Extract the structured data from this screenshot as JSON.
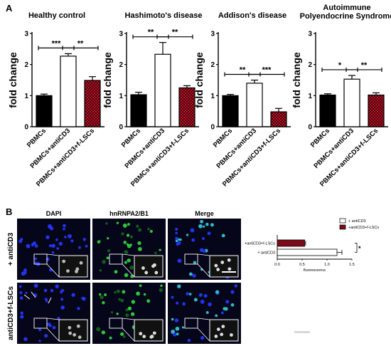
{
  "panel_a_letter": "A",
  "panel_b_letter": "B",
  "chart_data": [
    {
      "type": "bar",
      "title": "Healthy control",
      "ylabel": "fold change",
      "ylim": [
        0,
        3
      ],
      "yticks": [
        "0",
        "1",
        "2",
        "3"
      ],
      "categories": [
        "PBMCs",
        "PBMCs+antiCD3",
        "PBMCs+antiCD3+f-LSCs"
      ],
      "values": [
        1.0,
        2.27,
        1.49
      ],
      "errors": [
        0.05,
        0.08,
        0.12
      ],
      "fills": [
        "black",
        "white",
        "checker"
      ],
      "significance": [
        {
          "from": 0,
          "to": 1,
          "label": "***"
        },
        {
          "from": 1,
          "to": 2,
          "label": "**"
        }
      ]
    },
    {
      "type": "bar",
      "title": "Hashimoto's disease",
      "ylabel": "fold change",
      "ylim": [
        0,
        3
      ],
      "yticks": [
        "0",
        "1",
        "2",
        "3"
      ],
      "categories": [
        "PBMCs",
        "PBMCs+antiCD3",
        "PBMCs+antiCD3+f-LSCs"
      ],
      "values": [
        1.03,
        2.33,
        1.25
      ],
      "errors": [
        0.08,
        0.38,
        0.07
      ],
      "fills": [
        "black",
        "white",
        "checker"
      ],
      "significance": [
        {
          "from": 0,
          "to": 1,
          "label": "**"
        },
        {
          "from": 1,
          "to": 2,
          "label": "**"
        }
      ]
    },
    {
      "type": "bar",
      "title": "Addison's disease",
      "ylabel": "fold change",
      "ylim": [
        0,
        3
      ],
      "yticks": [
        "0",
        "1",
        "2",
        "3"
      ],
      "categories": [
        "PBMCs",
        "PBMCs+antiCD3",
        "PBMCs+antiCD3+f-LSCs"
      ],
      "values": [
        1.0,
        1.4,
        0.48
      ],
      "errors": [
        0.04,
        0.1,
        0.11
      ],
      "fills": [
        "black",
        "white",
        "checker"
      ],
      "significance": [
        {
          "from": 0,
          "to": 1,
          "label": "**"
        },
        {
          "from": 1,
          "to": 2,
          "label": "***"
        }
      ]
    },
    {
      "type": "bar",
      "title": "Autoimmune\nPolyendocrine Syndrome",
      "ylabel": "fold change",
      "ylim": [
        0,
        3
      ],
      "yticks": [
        "0",
        "1",
        "2",
        "3"
      ],
      "categories": [
        "PBMCs",
        "PBMCs+antiCD3",
        "PBMCs+antiCD3+f-LSCs"
      ],
      "values": [
        1.02,
        1.53,
        1.02
      ],
      "errors": [
        0.04,
        0.12,
        0.07
      ],
      "fills": [
        "black",
        "white",
        "checker"
      ],
      "significance": [
        {
          "from": 0,
          "to": 1,
          "label": "*"
        },
        {
          "from": 1,
          "to": 2,
          "label": "**"
        }
      ]
    },
    {
      "type": "bar",
      "orientation": "horizontal",
      "xlabel": "fluorescence",
      "xlim": [
        0,
        1.5
      ],
      "xticks": [
        "0.0",
        "0.5",
        "1.0",
        "1.5"
      ],
      "categories": [
        "+antiCD3+f-LSCs",
        "+ antiCD3"
      ],
      "values": [
        0.55,
        1.2
      ],
      "errors": [
        0.02,
        0.1
      ],
      "fills": [
        "checker",
        "white"
      ],
      "legend": [
        "+ antiCD3",
        "+antiCD3+f-LSCs"
      ],
      "legend_position": "top",
      "significance": [
        {
          "label": "*"
        }
      ]
    }
  ],
  "micrographs": {
    "columns": [
      "DAPI",
      "hnRNPA2/B1",
      "Merge"
    ],
    "rows": [
      "+ antiCD3",
      "antiCD3+f-LSCs"
    ]
  },
  "colors": {
    "checker_red": "#c0152a",
    "nucleus_blue": "#2233ee",
    "stain_green": "#2ec43a",
    "micrograph_bg": "#06061a"
  }
}
